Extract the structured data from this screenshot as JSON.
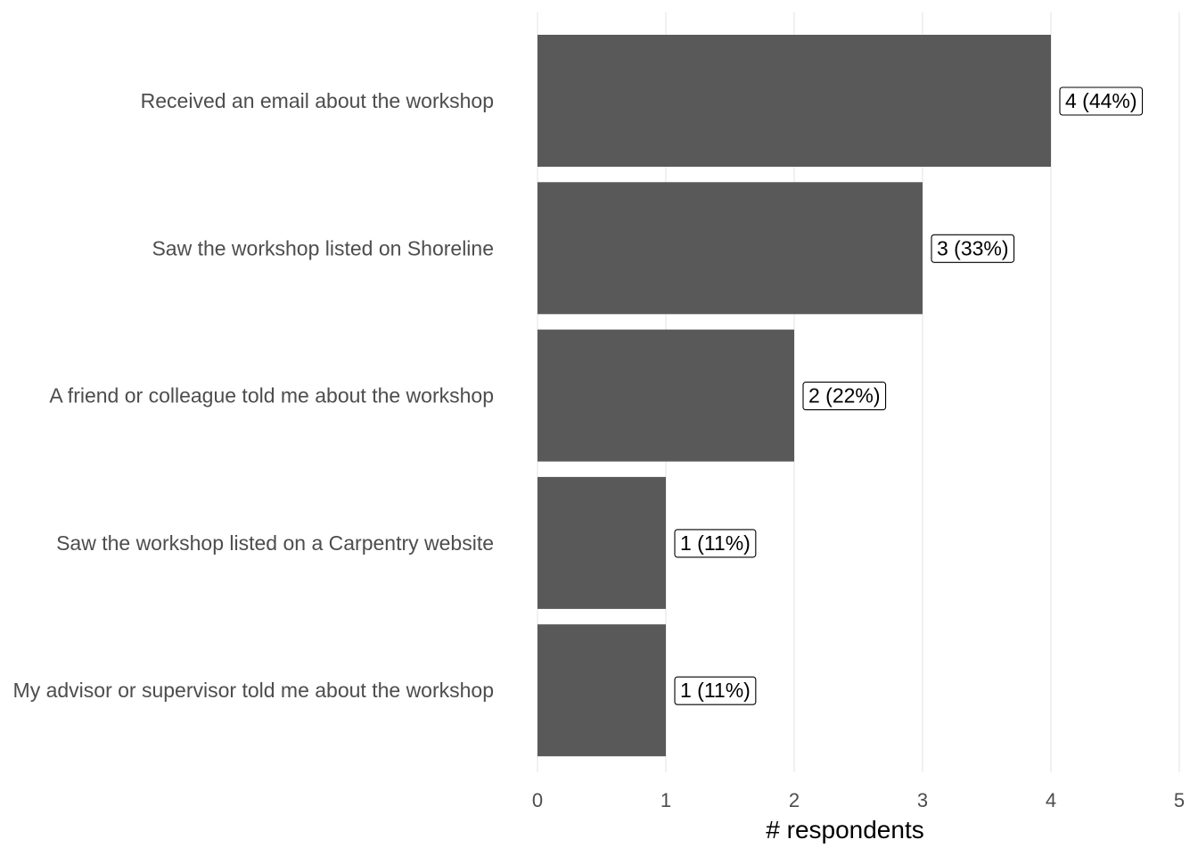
{
  "chart_data": {
    "type": "bar",
    "orientation": "horizontal",
    "categories": [
      "Received an email about the workshop",
      "Saw the workshop listed on Shoreline",
      "A friend or colleague told me about the workshop",
      "Saw the workshop listed on a Carpentry website",
      "My advisor or supervisor told me about the workshop"
    ],
    "values": [
      4,
      3,
      2,
      1,
      1
    ],
    "data_labels": [
      "4 (44%)",
      "3 (33%)",
      "2 (22%)",
      "1 (11%)",
      "1 (11%)"
    ],
    "xlabel": "# respondents",
    "ylabel": "",
    "xlim": [
      0,
      5
    ],
    "xticks": [
      0,
      1,
      2,
      3,
      4,
      5
    ],
    "grid": true,
    "legend": "none",
    "colors": {
      "bar": "#595959",
      "grid": "#ebebeb",
      "background": "#ffffff"
    }
  }
}
